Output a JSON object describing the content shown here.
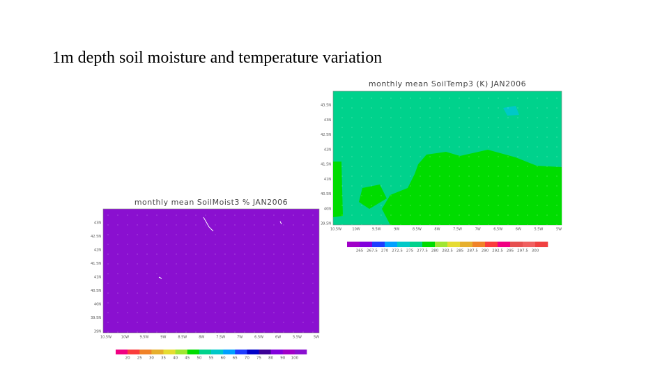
{
  "slide": {
    "title": "1m depth soil moisture and temperature variation"
  },
  "maps": [
    {
      "title": "monthly mean SoilTemp3 (K) JAN2006",
      "y_labels": [
        "43.5N",
        "43N",
        "42.5N",
        "42N",
        "41.5N",
        "41N",
        "40.5N",
        "40N",
        "39.5N"
      ],
      "x_labels": [
        "10.5W",
        "10W",
        "9.5W",
        "9W",
        "8.5W",
        "8W",
        "7.5W",
        "7W",
        "6.5W",
        "6W",
        "5.5W",
        "5W"
      ],
      "colorbar_labels": [
        "265",
        "267.5",
        "270",
        "272.5",
        "275",
        "277.5",
        "280",
        "282.5",
        "285",
        "287.5",
        "290",
        "292.5",
        "295",
        "297.5",
        "300"
      ],
      "colorbar_colors": [
        "#a000c8",
        "#8200dc",
        "#1e3cff",
        "#00a0ff",
        "#00c8c8",
        "#00d28c",
        "#00dc00",
        "#a0e632",
        "#e6dc32",
        "#e6af2d",
        "#f08228",
        "#fa3c3c",
        "#f00082",
        "#e65050",
        "#f06060",
        "#f04040"
      ]
    },
    {
      "title": "monthly mean SoilMoist3 % JAN2006",
      "y_labels": [
        "43N",
        "42.5N",
        "42N",
        "41.5N",
        "41N",
        "40.5N",
        "40N",
        "39.5N",
        "39N"
      ],
      "x_labels": [
        "10.5W",
        "10W",
        "9.5W",
        "9W",
        "8.5W",
        "8W",
        "7.5W",
        "7W",
        "6.5W",
        "6W",
        "5.5W",
        "5W"
      ],
      "colorbar_labels": [
        "20",
        "25",
        "30",
        "35",
        "40",
        "45",
        "50",
        "55",
        "60",
        "65",
        "70",
        "75",
        "80",
        "90",
        "100"
      ],
      "colorbar_colors": [
        "#f00082",
        "#fa3c3c",
        "#f08228",
        "#e6af2d",
        "#e6dc32",
        "#a0e632",
        "#00dc00",
        "#00d28c",
        "#00c8c8",
        "#00a0ff",
        "#1e3cff",
        "#0000c8",
        "#3c0096",
        "#8200dc",
        "#a000c8",
        "#8a10d0"
      ]
    }
  ]
}
